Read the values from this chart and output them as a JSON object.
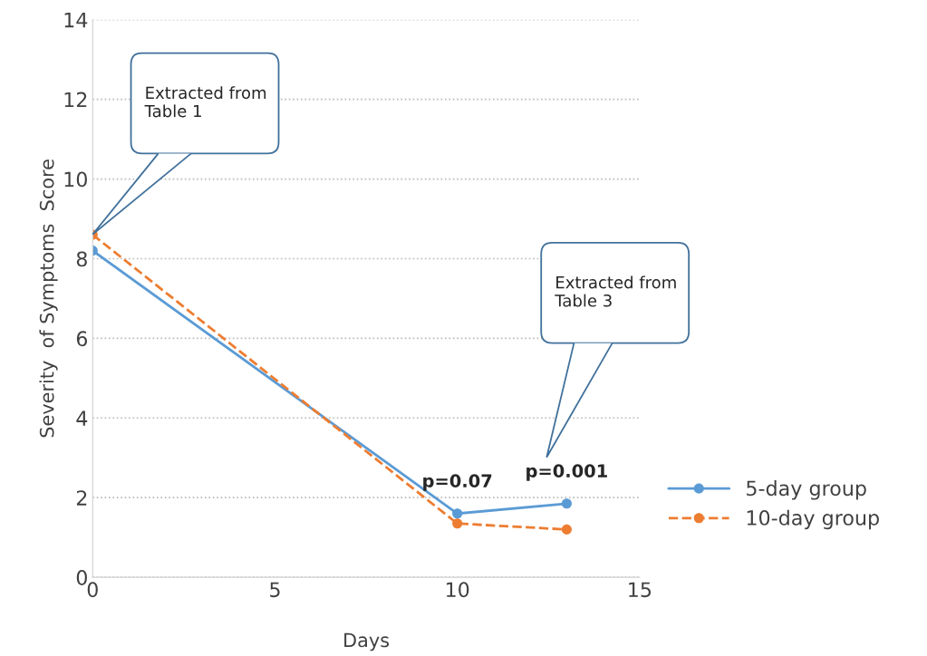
{
  "chart_data": {
    "type": "line",
    "xlabel": "Days",
    "ylabel": "Severity  of Symptoms  Score",
    "x": [
      0,
      10,
      13
    ],
    "series": [
      {
        "name": "5-day group",
        "color": "#5b9bd5",
        "values": [
          8.2,
          1.6,
          1.85
        ],
        "line_style": "solid"
      },
      {
        "name": "10-day group",
        "color": "#ed7d31",
        "values": [
          8.6,
          1.35,
          1.2
        ],
        "line_style": "dashed"
      }
    ],
    "xlim": [
      0,
      15
    ],
    "xticks": [
      0,
      5,
      10,
      15
    ],
    "ylim": [
      0,
      14
    ],
    "yticks": [
      0,
      2,
      4,
      6,
      8,
      10,
      12,
      14
    ],
    "grid": "y",
    "legend": "right",
    "marker": "circle",
    "annotations": [
      "Extracted from\nTable 1",
      "Extracted from\nTable 3",
      {
        "text": "p=0.07",
        "x": 10,
        "y": 1.6
      },
      {
        "text": "p=0.001",
        "x": 13,
        "y": 1.85
      }
    ]
  }
}
